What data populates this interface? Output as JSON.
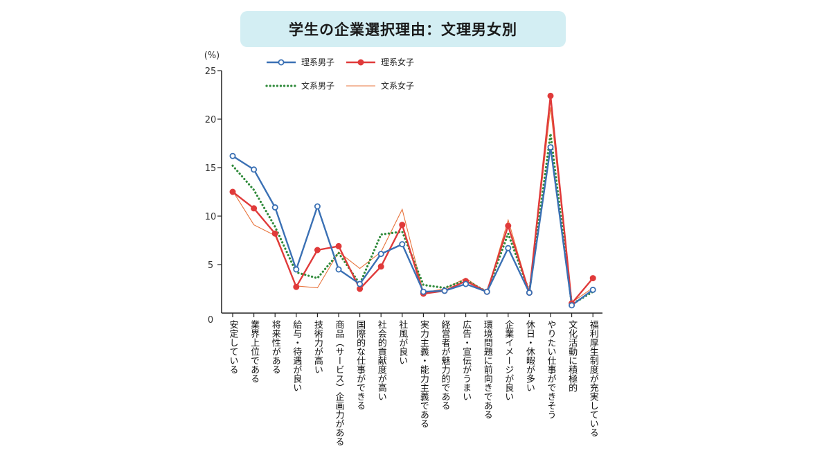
{
  "chart_data": {
    "type": "line",
    "title": "学生の企業選択理由：文理男女別",
    "unit": "(%)",
    "y_ticks": [
      0,
      5,
      10,
      15,
      20,
      25
    ],
    "ylim": [
      0,
      25
    ],
    "categories": [
      "安定している",
      "業界上位である",
      "将来性がある",
      "給与・待遇が良い",
      "技術力が高い",
      "商品（サービス）企画力がある",
      "国際的な仕事ができる",
      "社会的貢献度が高い",
      "社風が良い",
      "実力主義・能力主義である",
      "経営者が魅力的である",
      "広告・宣伝がうまい",
      "環境問題に前向きである",
      "企業イメージが良い",
      "休日・休暇が多い",
      "やりたい仕事ができそう",
      "文化活動に積極的",
      "福利厚生制度が充実している"
    ],
    "series": [
      {
        "name": "理系男子",
        "color": "#3a70b4",
        "style": "line-open-marker",
        "values": [
          16.2,
          14.8,
          10.9,
          4.5,
          11.0,
          4.5,
          3.0,
          6.1,
          7.1,
          2.2,
          2.3,
          3.0,
          2.2,
          6.7,
          2.1,
          17.1,
          0.8,
          2.4
        ]
      },
      {
        "name": "理系女子",
        "color": "#e03a3a",
        "style": "line-filled-marker",
        "values": [
          12.5,
          10.8,
          8.2,
          2.7,
          6.5,
          6.9,
          2.5,
          4.8,
          9.1,
          2.0,
          2.3,
          3.3,
          2.2,
          9.0,
          2.1,
          22.4,
          1.0,
          3.6
        ]
      },
      {
        "name": "文系男子",
        "color": "#2f8a3a",
        "style": "dotted",
        "values": [
          15.2,
          12.7,
          8.9,
          4.2,
          3.6,
          6.2,
          3.0,
          8.1,
          8.4,
          2.9,
          2.6,
          3.4,
          2.2,
          8.2,
          2.2,
          18.5,
          0.9,
          2.2
        ]
      },
      {
        "name": "文系女子",
        "color": "#e8743d",
        "style": "thin",
        "values": [
          12.6,
          9.1,
          8.0,
          2.8,
          2.6,
          6.3,
          4.6,
          6.3,
          10.7,
          2.1,
          2.5,
          3.6,
          2.1,
          9.6,
          2.1,
          21.2,
          1.1,
          2.6
        ]
      }
    ],
    "legend_position": "top-left",
    "grid": false
  }
}
